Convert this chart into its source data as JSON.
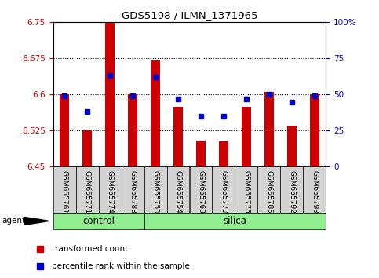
{
  "title": "GDS5198 / ILMN_1371965",
  "samples": [
    "GSM665761",
    "GSM665771",
    "GSM665774",
    "GSM665788",
    "GSM665750",
    "GSM665754",
    "GSM665769",
    "GSM665770",
    "GSM665775",
    "GSM665785",
    "GSM665792",
    "GSM665793"
  ],
  "groups": [
    "control",
    "control",
    "control",
    "control",
    "silica",
    "silica",
    "silica",
    "silica",
    "silica",
    "silica",
    "silica",
    "silica"
  ],
  "bar_values": [
    6.6,
    6.525,
    6.75,
    6.6,
    6.67,
    6.575,
    6.505,
    6.503,
    6.575,
    6.605,
    6.535,
    6.6
  ],
  "dot_values": [
    49,
    38,
    63,
    49,
    62,
    47,
    35,
    35,
    47,
    50,
    45,
    49
  ],
  "bar_color": "#cc0000",
  "dot_color": "#0000cc",
  "ylim": [
    6.45,
    6.75
  ],
  "yticks_left": [
    6.45,
    6.525,
    6.6,
    6.675,
    6.75
  ],
  "ytick_labels_left": [
    "6.45",
    "6.525",
    "6.6",
    "6.675",
    "6.75"
  ],
  "yticks_right": [
    0,
    25,
    50,
    75,
    100
  ],
  "ytick_labels_right": [
    "0",
    "25",
    "50",
    "75",
    "100%"
  ],
  "grid_values": [
    6.525,
    6.6,
    6.675
  ],
  "left_label_color": "#cc0000",
  "right_label_color": "#0000cc",
  "control_color": "#90ee90",
  "silica_color": "#90ee90",
  "agent_label": "agent",
  "control_label": "control",
  "silica_label": "silica",
  "legend_bar_label": "transformed count",
  "legend_dot_label": "percentile rank within the sample",
  "label_bg_color": "#d3d3d3",
  "bar_width": 0.4
}
